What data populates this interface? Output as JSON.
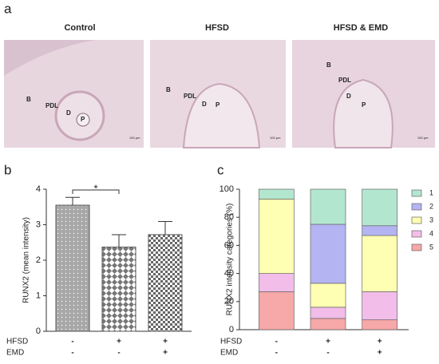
{
  "panel_labels": [
    "a",
    "b",
    "c"
  ],
  "figure_a": {
    "images": [
      {
        "title": "Control",
        "labels": [
          "B",
          "PDL",
          "D",
          "P"
        ],
        "scale": "100 µm"
      },
      {
        "title": "HFSD",
        "labels": [
          "B",
          "PDL",
          "D",
          "P"
        ],
        "scale": "100 µm"
      },
      {
        "title": "HFSD & EMD",
        "labels": [
          "B",
          "PDL",
          "D",
          "P"
        ],
        "scale": "100 µm"
      }
    ]
  },
  "chart_data": [
    {
      "type": "bar",
      "ylabel": "RUNX2 (mean intensity)",
      "values": [
        3.55,
        2.37,
        2.72
      ],
      "errors": [
        0.22,
        0.35,
        0.37
      ],
      "color": "#a8a8a8",
      "patterns": [
        "dots",
        "diamonds",
        "checks"
      ],
      "significance": "*",
      "ylim": [
        0,
        4
      ],
      "yticks": [
        0,
        1,
        2,
        3,
        4
      ],
      "conditions": [
        {
          "name": "HFSD",
          "values": [
            "-",
            "+",
            "+"
          ]
        },
        {
          "name": "EMD",
          "values": [
            "-",
            "-",
            "+"
          ]
        }
      ]
    },
    {
      "type": "stacked_bar",
      "ylabel": "RUNX2 intensity categories (%)",
      "series": [
        {
          "name": "5",
          "color": "#f7a8a8",
          "values": [
            27,
            8,
            7
          ]
        },
        {
          "name": "4",
          "color": "#f2bde9",
          "values": [
            13,
            8,
            20
          ]
        },
        {
          "name": "3",
          "color": "#ffffb3",
          "values": [
            53,
            17,
            40
          ]
        },
        {
          "name": "2",
          "color": "#b4b4f2",
          "values": [
            0,
            42,
            7
          ]
        },
        {
          "name": "1",
          "color": "#b3e6cf",
          "values": [
            7,
            25,
            26
          ]
        }
      ],
      "ylim": [
        0,
        100
      ],
      "yticks": [
        0,
        20,
        40,
        60,
        80,
        100
      ],
      "conditions": [
        {
          "name": "HFSD",
          "values": [
            "-",
            "+",
            "+"
          ]
        },
        {
          "name": "EMD",
          "values": [
            "-",
            "-",
            "+"
          ]
        }
      ]
    }
  ]
}
